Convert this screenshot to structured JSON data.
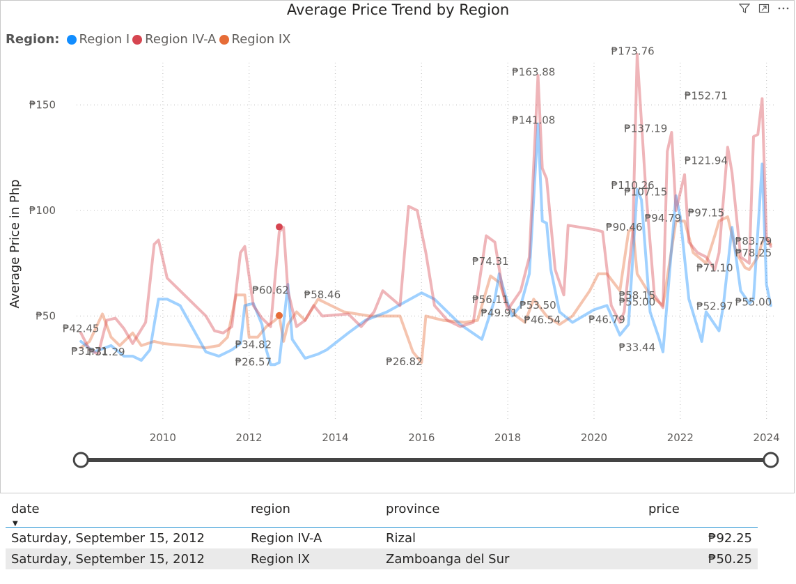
{
  "visual": {
    "title": "Average Price Trend by Region",
    "header_icons": [
      "filter-icon",
      "focus-mode-icon",
      "more-options-icon"
    ]
  },
  "legend": {
    "title": "Region:",
    "items": [
      {
        "label": "Region I",
        "color": "#118dff"
      },
      {
        "label": "Region IV-A",
        "color": "#d64550"
      },
      {
        "label": "Region IX",
        "color": "#e66c37"
      }
    ]
  },
  "chart_data": {
    "type": "line",
    "ylabel": "Average Price in Php",
    "ylim": [
      0,
      170
    ],
    "yticks": [
      50,
      100,
      150
    ],
    "ytick_labels": [
      "₱50",
      "₱100",
      "₱150"
    ],
    "xlim": [
      2008.0,
      2024.2
    ],
    "xticks": [
      2010,
      2012,
      2014,
      2016,
      2018,
      2020,
      2022,
      2024
    ],
    "grid": true,
    "series": [
      {
        "name": "Region I",
        "color": "#118dff",
        "points": [
          [
            2008.1,
            38
          ],
          [
            2008.4,
            33
          ],
          [
            2008.8,
            36
          ],
          [
            2009.1,
            31
          ],
          [
            2009.3,
            31
          ],
          [
            2009.5,
            29
          ],
          [
            2009.7,
            34
          ],
          [
            2009.9,
            58
          ],
          [
            2010.1,
            58
          ],
          [
            2010.4,
            55
          ],
          [
            2011.0,
            33
          ],
          [
            2011.3,
            31
          ],
          [
            2011.6,
            34
          ],
          [
            2011.8,
            37
          ],
          [
            2011.9,
            55
          ],
          [
            2012.1,
            56
          ],
          [
            2012.3,
            46
          ],
          [
            2012.4,
            34
          ],
          [
            2012.5,
            27
          ],
          [
            2012.6,
            27
          ],
          [
            2012.7,
            28
          ],
          [
            2012.9,
            65
          ],
          [
            2013.0,
            39
          ],
          [
            2013.3,
            30
          ],
          [
            2013.6,
            32
          ],
          [
            2013.8,
            34
          ],
          [
            2014.3,
            42
          ],
          [
            2014.7,
            48
          ],
          [
            2015.2,
            52
          ],
          [
            2016.0,
            61
          ],
          [
            2016.3,
            58
          ],
          [
            2016.9,
            46
          ],
          [
            2017.4,
            39
          ],
          [
            2017.7,
            58
          ],
          [
            2017.8,
            70
          ],
          [
            2018.0,
            56
          ],
          [
            2018.1,
            50
          ],
          [
            2018.3,
            55
          ],
          [
            2018.5,
            70
          ],
          [
            2018.7,
            141
          ],
          [
            2018.8,
            95
          ],
          [
            2018.9,
            94
          ],
          [
            2019.0,
            72
          ],
          [
            2019.2,
            52
          ],
          [
            2019.5,
            47
          ],
          [
            2020.0,
            53
          ],
          [
            2020.3,
            55
          ],
          [
            2020.6,
            41
          ],
          [
            2020.8,
            46
          ],
          [
            2021.0,
            110
          ],
          [
            2021.1,
            105
          ],
          [
            2021.3,
            52
          ],
          [
            2021.5,
            40
          ],
          [
            2021.6,
            33
          ],
          [
            2021.9,
            107
          ],
          [
            2022.0,
            97
          ],
          [
            2022.2,
            58
          ],
          [
            2022.5,
            38
          ],
          [
            2022.6,
            52
          ],
          [
            2022.9,
            43
          ],
          [
            2023.0,
            55
          ],
          [
            2023.2,
            92
          ],
          [
            2023.4,
            62
          ],
          [
            2023.6,
            56
          ],
          [
            2023.7,
            58
          ],
          [
            2023.8,
            90
          ],
          [
            2023.9,
            122
          ],
          [
            2024.0,
            65
          ],
          [
            2024.1,
            55
          ]
        ]
      },
      {
        "name": "Region IV-A",
        "color": "#d64550",
        "points": [
          [
            2008.1,
            42
          ],
          [
            2008.3,
            34
          ],
          [
            2008.5,
            32
          ],
          [
            2008.7,
            48
          ],
          [
            2008.9,
            49
          ],
          [
            2009.1,
            44
          ],
          [
            2009.3,
            37
          ],
          [
            2009.6,
            47
          ],
          [
            2009.8,
            84
          ],
          [
            2009.9,
            86
          ],
          [
            2010.1,
            68
          ],
          [
            2011.0,
            50
          ],
          [
            2011.2,
            43
          ],
          [
            2011.4,
            42
          ],
          [
            2011.6,
            45
          ],
          [
            2011.8,
            80
          ],
          [
            2011.9,
            83
          ],
          [
            2012.1,
            55
          ],
          [
            2012.3,
            49
          ],
          [
            2012.5,
            45
          ],
          [
            2012.7,
            90
          ],
          [
            2012.8,
            92
          ],
          [
            2012.9,
            62
          ],
          [
            2013.1,
            45
          ],
          [
            2013.3,
            48
          ],
          [
            2013.5,
            55
          ],
          [
            2013.7,
            50
          ],
          [
            2014.3,
            51
          ],
          [
            2014.6,
            45
          ],
          [
            2014.9,
            52
          ],
          [
            2015.1,
            62
          ],
          [
            2015.5,
            55
          ],
          [
            2015.7,
            102
          ],
          [
            2015.9,
            100
          ],
          [
            2016.0,
            90
          ],
          [
            2016.1,
            80
          ],
          [
            2016.3,
            55
          ],
          [
            2016.6,
            48
          ],
          [
            2016.9,
            45
          ],
          [
            2017.2,
            47
          ],
          [
            2017.5,
            88
          ],
          [
            2017.7,
            85
          ],
          [
            2017.9,
            60
          ],
          [
            2018.0,
            53
          ],
          [
            2018.3,
            62
          ],
          [
            2018.5,
            78
          ],
          [
            2018.7,
            164
          ],
          [
            2018.8,
            120
          ],
          [
            2018.9,
            115
          ],
          [
            2019.1,
            72
          ],
          [
            2019.3,
            60
          ],
          [
            2019.4,
            93
          ],
          [
            2020.0,
            91
          ],
          [
            2020.2,
            90
          ],
          [
            2020.4,
            55
          ],
          [
            2020.6,
            47
          ],
          [
            2020.7,
            52
          ],
          [
            2020.9,
            90
          ],
          [
            2021.0,
            174
          ],
          [
            2021.2,
            110
          ],
          [
            2021.4,
            60
          ],
          [
            2021.6,
            54
          ],
          [
            2021.7,
            128
          ],
          [
            2021.8,
            137
          ],
          [
            2021.9,
            100
          ],
          [
            2022.1,
            117
          ],
          [
            2022.2,
            85
          ],
          [
            2022.4,
            80
          ],
          [
            2022.6,
            78
          ],
          [
            2022.8,
            72
          ],
          [
            2022.9,
            80
          ],
          [
            2023.1,
            130
          ],
          [
            2023.2,
            118
          ],
          [
            2023.4,
            78
          ],
          [
            2023.6,
            75
          ],
          [
            2023.7,
            135
          ],
          [
            2023.8,
            136
          ],
          [
            2023.9,
            153
          ],
          [
            2024.0,
            87
          ],
          [
            2024.1,
            83
          ]
        ]
      },
      {
        "name": "Region IX",
        "color": "#e66c37",
        "points": [
          [
            2008.1,
            35
          ],
          [
            2008.3,
            38
          ],
          [
            2008.6,
            51
          ],
          [
            2008.8,
            40
          ],
          [
            2009.0,
            36
          ],
          [
            2009.3,
            42
          ],
          [
            2009.5,
            36
          ],
          [
            2009.8,
            38
          ],
          [
            2010.0,
            37
          ],
          [
            2011.0,
            35
          ],
          [
            2011.3,
            36
          ],
          [
            2011.5,
            40
          ],
          [
            2011.7,
            60
          ],
          [
            2011.9,
            60
          ],
          [
            2012.0,
            40
          ],
          [
            2012.2,
            40
          ],
          [
            2012.4,
            45
          ],
          [
            2012.6,
            48
          ],
          [
            2012.7,
            50
          ],
          [
            2012.8,
            38
          ],
          [
            2012.9,
            46
          ],
          [
            2013.1,
            52
          ],
          [
            2013.3,
            48
          ],
          [
            2013.6,
            58
          ],
          [
            2014.2,
            52
          ],
          [
            2014.8,
            50
          ],
          [
            2015.5,
            50
          ],
          [
            2015.8,
            33
          ],
          [
            2016.0,
            28
          ],
          [
            2016.1,
            50
          ],
          [
            2016.5,
            48
          ],
          [
            2017.0,
            47
          ],
          [
            2017.3,
            48
          ],
          [
            2017.6,
            69
          ],
          [
            2017.8,
            66
          ],
          [
            2018.0,
            55
          ],
          [
            2018.2,
            50
          ],
          [
            2018.4,
            47
          ],
          [
            2018.6,
            58
          ],
          [
            2018.9,
            50
          ],
          [
            2019.2,
            46
          ],
          [
            2019.5,
            50
          ],
          [
            2019.9,
            62
          ],
          [
            2020.1,
            70
          ],
          [
            2020.3,
            70
          ],
          [
            2020.6,
            62
          ],
          [
            2020.8,
            90
          ],
          [
            2020.9,
            92
          ],
          [
            2021.0,
            70
          ],
          [
            2021.3,
            60
          ],
          [
            2021.6,
            55
          ],
          [
            2021.9,
            95
          ],
          [
            2022.1,
            95
          ],
          [
            2022.3,
            80
          ],
          [
            2022.6,
            75
          ],
          [
            2022.8,
            88
          ],
          [
            2022.9,
            95
          ],
          [
            2023.1,
            97
          ],
          [
            2023.3,
            80
          ],
          [
            2023.5,
            73
          ],
          [
            2023.6,
            72
          ],
          [
            2023.8,
            78
          ],
          [
            2023.9,
            85
          ],
          [
            2024.0,
            87
          ],
          [
            2024.1,
            84
          ]
        ]
      }
    ],
    "highlight_points": [
      {
        "x": 2012.7,
        "y": 92.25,
        "series": "Region IV-A",
        "color": "#d64550"
      },
      {
        "x": 2012.7,
        "y": 50.25,
        "series": "Region IX",
        "color": "#e66c37"
      }
    ],
    "data_labels": [
      {
        "text": "₱42.45",
        "x": 2008.1,
        "y": 42.45
      },
      {
        "text": "₱31.29",
        "x": 2008.7,
        "y": 31.29
      },
      {
        "text": "₱31.71",
        "x": 2008.3,
        "y": 31.71
      },
      {
        "text": "₱34.82",
        "x": 2012.1,
        "y": 34.82
      },
      {
        "text": "₱26.57",
        "x": 2012.1,
        "y": 26.57
      },
      {
        "text": "₱60.62",
        "x": 2012.5,
        "y": 60.62
      },
      {
        "text": "₱58.46",
        "x": 2013.7,
        "y": 58.46
      },
      {
        "text": "₱26.82",
        "x": 2015.6,
        "y": 26.82
      },
      {
        "text": "₱74.31",
        "x": 2017.6,
        "y": 74.31
      },
      {
        "text": "₱56.11",
        "x": 2017.6,
        "y": 56.11
      },
      {
        "text": "₱49.91",
        "x": 2017.8,
        "y": 49.91
      },
      {
        "text": "₱163.88",
        "x": 2018.6,
        "y": 163.88
      },
      {
        "text": "₱141.08",
        "x": 2018.6,
        "y": 141.08
      },
      {
        "text": "₱53.50",
        "x": 2018.7,
        "y": 53.5
      },
      {
        "text": "₱46.54",
        "x": 2018.8,
        "y": 46.54
      },
      {
        "text": "₱46.79",
        "x": 2020.3,
        "y": 46.79
      },
      {
        "text": "₱173.76",
        "x": 2020.9,
        "y": 173.76
      },
      {
        "text": "₱110.26",
        "x": 2020.9,
        "y": 110.26
      },
      {
        "text": "₱90.46",
        "x": 2020.7,
        "y": 90.46
      },
      {
        "text": "₱55.00",
        "x": 2021.0,
        "y": 55.0
      },
      {
        "text": "₱58.15",
        "x": 2021.0,
        "y": 58.15
      },
      {
        "text": "₱33.44",
        "x": 2021.0,
        "y": 33.44
      },
      {
        "text": "₱137.19",
        "x": 2021.2,
        "y": 137.19
      },
      {
        "text": "₱107.15",
        "x": 2021.2,
        "y": 107.15
      },
      {
        "text": "₱94.79",
        "x": 2021.6,
        "y": 94.79
      },
      {
        "text": "₱152.71",
        "x": 2022.6,
        "y": 152.71
      },
      {
        "text": "₱121.94",
        "x": 2022.6,
        "y": 121.94
      },
      {
        "text": "₱97.15",
        "x": 2022.6,
        "y": 97.15
      },
      {
        "text": "₱71.10",
        "x": 2022.8,
        "y": 71.1
      },
      {
        "text": "₱52.97",
        "x": 2022.8,
        "y": 52.97
      },
      {
        "text": "₱83.79",
        "x": 2023.7,
        "y": 83.79
      },
      {
        "text": "₱78.25",
        "x": 2023.7,
        "y": 78.25
      },
      {
        "text": "₱55.00",
        "x": 2023.7,
        "y": 55.0
      }
    ]
  },
  "slider": {
    "range_start": 2008.1,
    "range_end": 2024.1
  },
  "table": {
    "columns": [
      "date",
      "region",
      "province",
      "price"
    ],
    "sort_column": "date",
    "sort_direction": "descending",
    "rows": [
      {
        "date": "Saturday, September 15, 2012",
        "region": "Region IV-A",
        "province": "Rizal",
        "price": "₱92.25"
      },
      {
        "date": "Saturday, September 15, 2012",
        "region": "Region IX",
        "province": "Zamboanga del Sur",
        "price": "₱50.25"
      }
    ]
  }
}
